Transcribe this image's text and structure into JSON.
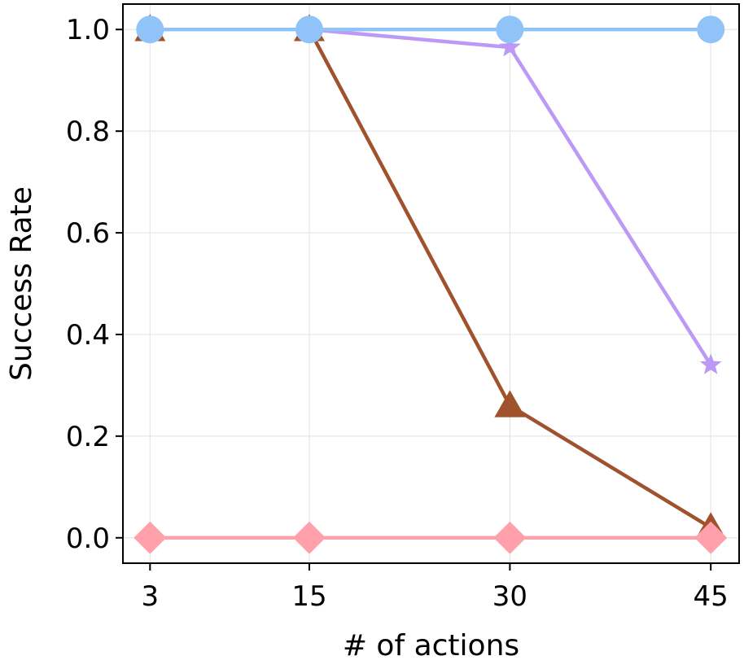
{
  "chart_data": {
    "type": "line",
    "title": "",
    "xlabel": "# of actions",
    "ylabel": "Success Rate",
    "x": [
      3,
      15,
      30,
      45
    ],
    "x_scale": "categorical-spaced",
    "xlim": [
      1.0,
      46.5
    ],
    "ylim": [
      -0.05,
      1.05
    ],
    "yticks": [
      0.0,
      0.2,
      0.4,
      0.6,
      0.8,
      1.0
    ],
    "ytick_labels": [
      "0.0",
      "0.2",
      "0.4",
      "0.6",
      "0.8",
      "1.0"
    ],
    "xtick_labels": [
      "3",
      "15",
      "30",
      "45"
    ],
    "grid": true,
    "legend": "none",
    "series": [
      {
        "values": [
          1.0,
          1.0,
          0.26,
          0.02
        ],
        "color": "#a0522d",
        "marker": "triangle"
      },
      {
        "values": [
          1.0,
          1.0,
          0.965,
          0.34
        ],
        "color": "#bb99f5",
        "marker": "star"
      },
      {
        "values": [
          1.0,
          1.0,
          1.0,
          1.0
        ],
        "color": "#90c4f9",
        "marker": "circle"
      },
      {
        "values": [
          0.0,
          0.0,
          0.0,
          0.0
        ],
        "color": "#ffa0aa",
        "marker": "diamond"
      }
    ]
  }
}
